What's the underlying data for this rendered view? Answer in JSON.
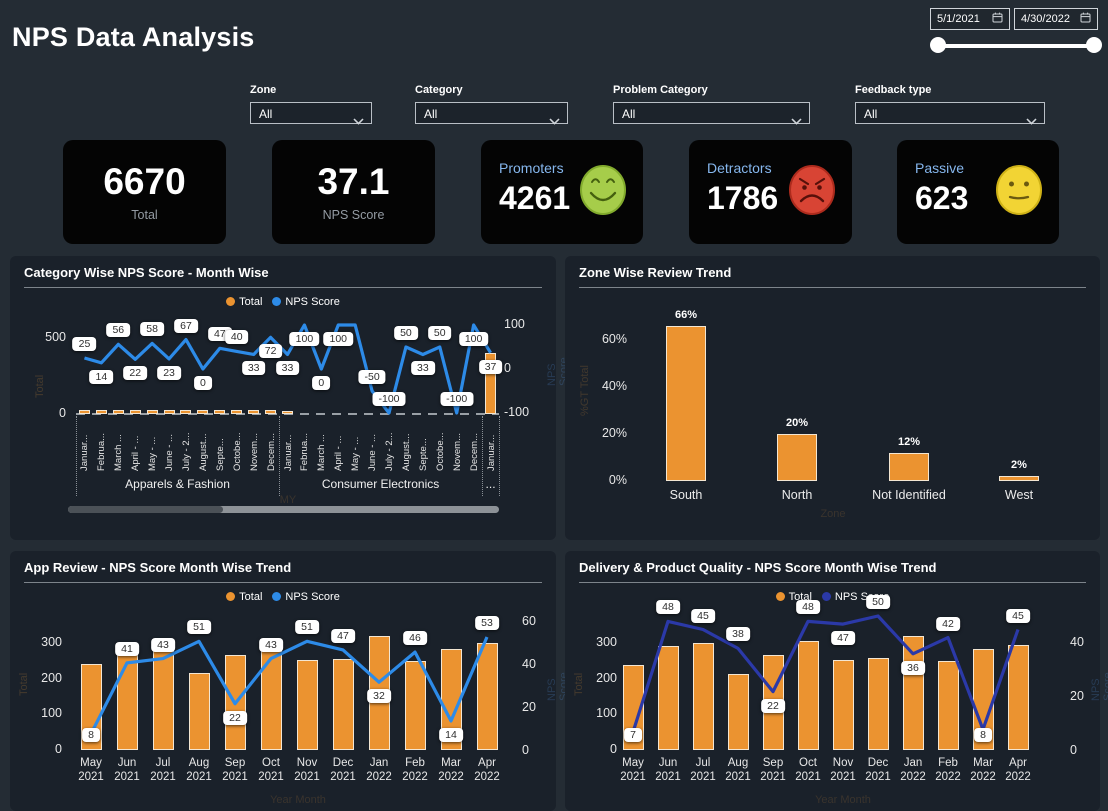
{
  "title": "NPS Data Analysis",
  "date_range": {
    "start": "5/1/2021",
    "end": "4/30/2022"
  },
  "filters": [
    {
      "label": "Zone",
      "value": "All"
    },
    {
      "label": "Category",
      "value": "All"
    },
    {
      "label": "Problem Category",
      "value": "All"
    },
    {
      "label": "Feedback type",
      "value": "All"
    }
  ],
  "kpis": {
    "total": {
      "value": "6670",
      "label": "Total"
    },
    "nps_score": {
      "value": "37.1",
      "label": "NPS Score"
    },
    "promoters": {
      "label": "Promoters",
      "value": "4261",
      "icon": "green-smiley",
      "color": "#a6cd4a"
    },
    "detractors": {
      "label": "Detractors",
      "value": "1786",
      "icon": "red-frown",
      "color": "#d84434"
    },
    "passive": {
      "label": "Passive",
      "value": "623",
      "icon": "yellow-neutral",
      "color": "#f2d434"
    }
  },
  "chart_data": [
    {
      "id": "category-nps",
      "type": "combo-bar-line",
      "title": "Category Wise NPS Score - Month Wise",
      "categories": [
        "Januar...",
        "Februa...",
        "March ...",
        "April - ...",
        "May - ...",
        "June - ...",
        "July - 2...",
        "August...",
        "Septe...",
        "Octobe...",
        "Novem...",
        "Decem...",
        "Januar...",
        "Februa...",
        "March ...",
        "April - ...",
        "May - ...",
        "June - ...",
        "July - 2...",
        "August...",
        "Septe...",
        "Octobe...",
        "Novem...",
        "Decem...",
        "Januar..."
      ],
      "category_groups": [
        {
          "label": "Apparels & Fashion",
          "span": 12
        },
        {
          "label": "Consumer Electronics",
          "span": 12
        },
        {
          "label": "...",
          "span": 1
        }
      ],
      "series": [
        {
          "name": "Total",
          "type": "bar",
          "color": "#EB9330",
          "values": [
            25,
            25,
            25,
            25,
            25,
            25,
            25,
            25,
            25,
            25,
            25,
            25,
            20,
            0,
            0,
            0,
            0,
            0,
            0,
            0,
            0,
            0,
            0,
            0,
            400
          ]
        },
        {
          "name": "NPS Score",
          "type": "line",
          "color": "#2D8BE8",
          "values": [
            25,
            14,
            56,
            22,
            58,
            23,
            67,
            0,
            47,
            40,
            33,
            72,
            33,
            100,
            0,
            100,
            100,
            -50,
            -100,
            50,
            33,
            50,
            -100,
            100,
            37
          ]
        }
      ],
      "label_skip_index": 16,
      "left_axis": {
        "title": "Total",
        "ticks": [
          500,
          0
        ],
        "max": 500
      },
      "right_axis": {
        "title": "NPS Score",
        "ticks": [
          100,
          0,
          -100
        ],
        "min": -100,
        "max": 100
      },
      "x_axis_title": "MY",
      "has_scrollbar": true
    },
    {
      "id": "zone-review",
      "type": "bar",
      "title": "Zone Wise Review Trend",
      "categories": [
        "South",
        "North",
        "Not Identified",
        "West"
      ],
      "values": [
        66,
        20,
        12,
        2
      ],
      "value_labels": [
        "66%",
        "20%",
        "12%",
        "2%"
      ],
      "bar_color": "#EB9330",
      "y_ticks": [
        "60%",
        "40%",
        "20%",
        "0%"
      ],
      "y_axis_title": "%GT Total",
      "x_axis_title": "Zone"
    },
    {
      "id": "app-review",
      "type": "combo-bar-line",
      "title": "App Review - NPS Score Month Wise Trend",
      "categories": [
        "May 2021",
        "Jun 2021",
        "Jul 2021",
        "Aug 2021",
        "Sep 2021",
        "Oct 2021",
        "Nov 2021",
        "Dec 2021",
        "Jan 2022",
        "Feb 2022",
        "Mar 2022",
        "Apr 2022"
      ],
      "series": [
        {
          "name": "Total",
          "type": "bar",
          "color": "#EB9330",
          "values": [
            240,
            290,
            300,
            215,
            265,
            290,
            252,
            255,
            320,
            250,
            283,
            300
          ]
        },
        {
          "name": "NPS Score",
          "type": "line",
          "color": "#2D8BE8",
          "values": [
            8,
            41,
            43,
            51,
            22,
            43,
            51,
            47,
            32,
            46,
            14,
            53
          ]
        }
      ],
      "left_axis": {
        "title": "Total",
        "ticks": [
          300,
          200,
          100,
          0
        ]
      },
      "right_axis": {
        "title": "NPS Score",
        "ticks": [
          60,
          40,
          20,
          0
        ]
      },
      "x_axis_title": "Year Month"
    },
    {
      "id": "delivery-product-quality",
      "type": "combo-bar-line",
      "title": "Delivery & Product Quality - NPS Score Month Wise Trend",
      "categories": [
        "May 2021",
        "Jun 2021",
        "Jul 2021",
        "Aug 2021",
        "Sep 2021",
        "Oct 2021",
        "Nov 2021",
        "Dec 2021",
        "Jan 2022",
        "Feb 2022",
        "Mar 2022",
        "Apr 2022"
      ],
      "series": [
        {
          "name": "Total",
          "type": "bar",
          "color": "#EB9330",
          "values": [
            240,
            292,
            302,
            213,
            267,
            307,
            253,
            258,
            320,
            251,
            284,
            295
          ]
        },
        {
          "name": "NPS Score",
          "type": "line",
          "color": "#2B39A8",
          "values": [
            7,
            48,
            45,
            38,
            22,
            48,
            47,
            50,
            36,
            42,
            8,
            45
          ]
        }
      ],
      "left_axis": {
        "title": "Total",
        "ticks": [
          300,
          200,
          100,
          0
        ]
      },
      "right_axis": {
        "title": "NPS Score",
        "ticks": [
          40,
          20,
          0
        ]
      },
      "x_axis_title": "Year Month"
    }
  ]
}
